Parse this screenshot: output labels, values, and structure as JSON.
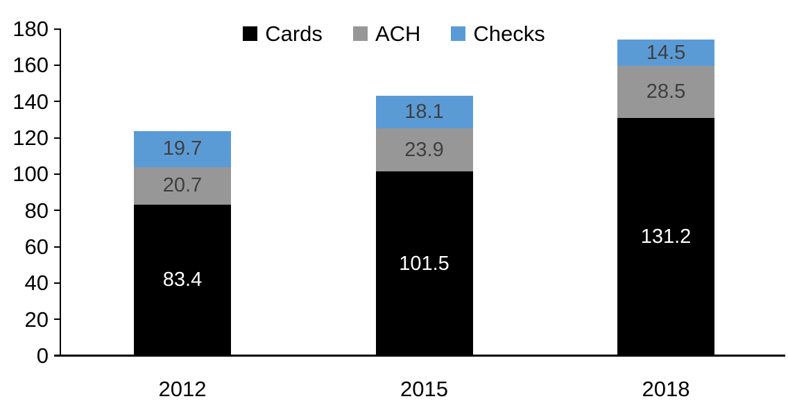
{
  "chart_data": {
    "type": "bar",
    "stacked": true,
    "title": "",
    "xlabel": "",
    "ylabel": "",
    "categories": [
      "2012",
      "2015",
      "2018"
    ],
    "series": [
      {
        "name": "Cards",
        "color": "#000000",
        "label_color": "#ffffff",
        "values": [
          83.4,
          101.5,
          131.2
        ]
      },
      {
        "name": "ACH",
        "color": "#979797",
        "label_color": "#3f3f3f",
        "values": [
          20.7,
          23.9,
          28.5
        ]
      },
      {
        "name": "Checks",
        "color": "#5b9bd5",
        "label_color": "#3f3f3f",
        "values": [
          19.7,
          18.1,
          14.5
        ]
      }
    ],
    "totals": [
      123.8,
      143.5,
      174.2
    ],
    "ylim": [
      0,
      180
    ],
    "yticks": [
      0,
      20,
      40,
      60,
      80,
      100,
      120,
      140,
      160,
      180
    ],
    "grid": false,
    "legend_position": "top",
    "axis_color": "#000000"
  }
}
